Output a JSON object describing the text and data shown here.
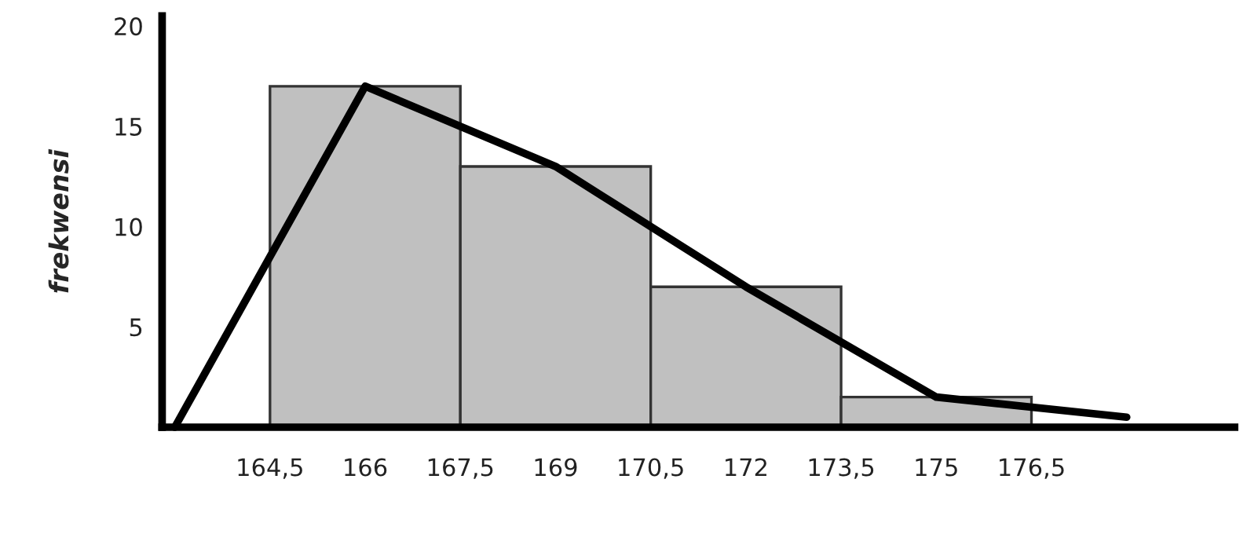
{
  "chart_data": {
    "type": "histogram",
    "ylabel": "frekwensi",
    "bins": [
      164.5,
      167.5,
      170.5,
      173.5,
      176.5
    ],
    "values": [
      17,
      13,
      7,
      1.5
    ],
    "color": "#c0c0c0",
    "series": [
      {
        "type": "line",
        "x": [
          163,
          166,
          169,
          172,
          175,
          178
        ],
        "values": [
          0,
          17,
          13,
          7,
          1.5,
          0.5
        ],
        "color": "#000000"
      }
    ],
    "xlim": [
      162.8,
      179.7
    ],
    "ylim": [
      0,
      20.5
    ],
    "xticks": [
      {
        "value": 164.5,
        "label": "164,5"
      },
      166,
      {
        "value": 167.5,
        "label": "167,5"
      },
      169,
      {
        "value": 170.5,
        "label": "170,5"
      },
      172,
      {
        "value": 173.5,
        "label": "173,5"
      },
      175,
      {
        "value": 176.5,
        "label": "176,5"
      }
    ],
    "yticks": [
      5,
      10,
      15,
      20
    ],
    "grid": false,
    "marker": "none",
    "line_style": "solid"
  }
}
